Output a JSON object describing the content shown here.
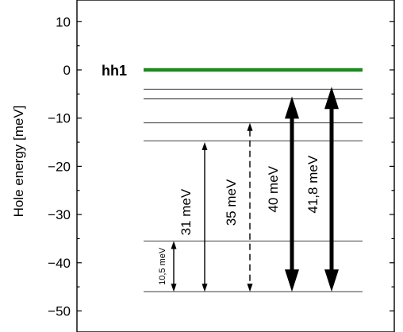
{
  "chart_data": {
    "type": "line",
    "ylabel": "Hole energy [meV]",
    "ylim": [
      -53,
      13
    ],
    "yticks": [
      10,
      0,
      -10,
      -20,
      -30,
      -40,
      -50
    ],
    "ytick_labels": [
      "10",
      "0",
      "−10",
      "−20",
      "−30",
      "−40",
      "−50"
    ],
    "ground_level": {
      "label": "hh1",
      "energy": 0,
      "color": "#1e8a1e"
    },
    "levels": [
      -4,
      -6,
      -11,
      -14.7,
      -35.5,
      -46
    ],
    "transitions": [
      {
        "label": "10,5 meV",
        "from": -35.5,
        "to": -46,
        "style": "thin-solid",
        "size": "small"
      },
      {
        "label": "31 meV",
        "from": -15,
        "to": -46,
        "style": "thin-solid",
        "size": "normal"
      },
      {
        "label": "35 meV",
        "from": -11,
        "to": -46,
        "style": "dashed",
        "size": "normal"
      },
      {
        "label": "40 meV",
        "from": -5.5,
        "to": -46,
        "style": "bold",
        "size": "normal"
      },
      {
        "label": "41,8 meV",
        "from": -3.5,
        "to": -46,
        "style": "bold",
        "size": "normal"
      }
    ]
  }
}
